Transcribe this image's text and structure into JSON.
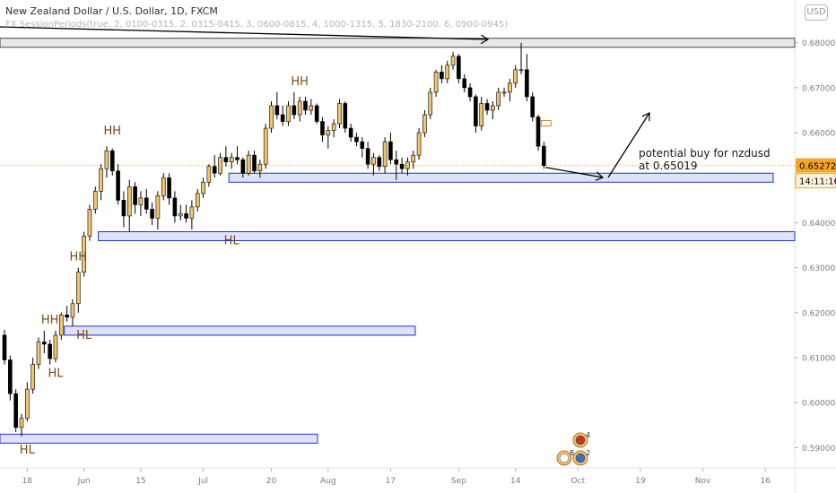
{
  "header": {
    "title": "New Zealand Dollar / U.S. Dollar, 1D, FXCM",
    "indicator": "FX SessionPeriods(true, 2, 0100-0315, 2, 0315-0415, 3, 0600-0815, 4, 1000-1315, 5, 1830-2100, 6, 0900-0945)"
  },
  "currency_badge": "USD",
  "chart_data": {
    "type": "candlestick",
    "symbol": "NZDUSD",
    "interval": "1D",
    "ylim": [
      0.5855,
      0.6895
    ],
    "y_ticks": [
      "0.69000",
      "0.68000",
      "0.67000",
      "0.66000",
      "0.65000",
      "0.64000",
      "0.63000",
      "0.62000",
      "0.61000",
      "0.60000",
      "0.59000"
    ],
    "x_ticks": [
      "18",
      "Jun",
      "15",
      "Jul",
      "20",
      "Aug",
      "17",
      "Sep",
      "14",
      "Oct",
      "19",
      "Nov",
      "16"
    ],
    "current_price": "0.65272",
    "countdown": "14:11:16",
    "candles": [
      {
        "o": 0.615,
        "h": 0.6162,
        "l": 0.6085,
        "c": 0.6095
      },
      {
        "o": 0.6095,
        "h": 0.6105,
        "l": 0.6005,
        "c": 0.602
      },
      {
        "o": 0.602,
        "h": 0.603,
        "l": 0.5935,
        "c": 0.5945
      },
      {
        "o": 0.5945,
        "h": 0.5975,
        "l": 0.5925,
        "c": 0.5965
      },
      {
        "o": 0.5965,
        "h": 0.6045,
        "l": 0.5958,
        "c": 0.603
      },
      {
        "o": 0.603,
        "h": 0.61,
        "l": 0.602,
        "c": 0.6085
      },
      {
        "o": 0.6085,
        "h": 0.6145,
        "l": 0.6075,
        "c": 0.6135
      },
      {
        "o": 0.6135,
        "h": 0.616,
        "l": 0.611,
        "c": 0.613
      },
      {
        "o": 0.613,
        "h": 0.614,
        "l": 0.6085,
        "c": 0.6098
      },
      {
        "o": 0.6098,
        "h": 0.616,
        "l": 0.609,
        "c": 0.615
      },
      {
        "o": 0.615,
        "h": 0.62,
        "l": 0.614,
        "c": 0.6195
      },
      {
        "o": 0.6195,
        "h": 0.6215,
        "l": 0.618,
        "c": 0.619
      },
      {
        "o": 0.619,
        "h": 0.623,
        "l": 0.617,
        "c": 0.622
      },
      {
        "o": 0.622,
        "h": 0.63,
        "l": 0.62,
        "c": 0.629
      },
      {
        "o": 0.629,
        "h": 0.638,
        "l": 0.628,
        "c": 0.637
      },
      {
        "o": 0.637,
        "h": 0.644,
        "l": 0.636,
        "c": 0.643
      },
      {
        "o": 0.643,
        "h": 0.648,
        "l": 0.642,
        "c": 0.647
      },
      {
        "o": 0.647,
        "h": 0.653,
        "l": 0.645,
        "c": 0.652
      },
      {
        "o": 0.652,
        "h": 0.657,
        "l": 0.65,
        "c": 0.656
      },
      {
        "o": 0.656,
        "h": 0.6565,
        "l": 0.6505,
        "c": 0.6515
      },
      {
        "o": 0.6515,
        "h": 0.653,
        "l": 0.644,
        "c": 0.645
      },
      {
        "o": 0.645,
        "h": 0.647,
        "l": 0.639,
        "c": 0.6415
      },
      {
        "o": 0.6415,
        "h": 0.6495,
        "l": 0.638,
        "c": 0.648
      },
      {
        "o": 0.648,
        "h": 0.649,
        "l": 0.642,
        "c": 0.644
      },
      {
        "o": 0.644,
        "h": 0.647,
        "l": 0.6415,
        "c": 0.6455
      },
      {
        "o": 0.6455,
        "h": 0.6475,
        "l": 0.642,
        "c": 0.643
      },
      {
        "o": 0.643,
        "h": 0.6445,
        "l": 0.6395,
        "c": 0.641
      },
      {
        "o": 0.641,
        "h": 0.647,
        "l": 0.6385,
        "c": 0.646
      },
      {
        "o": 0.646,
        "h": 0.651,
        "l": 0.645,
        "c": 0.65
      },
      {
        "o": 0.65,
        "h": 0.651,
        "l": 0.644,
        "c": 0.6455
      },
      {
        "o": 0.6455,
        "h": 0.647,
        "l": 0.64,
        "c": 0.6415
      },
      {
        "o": 0.6415,
        "h": 0.644,
        "l": 0.6405,
        "c": 0.642
      },
      {
        "o": 0.642,
        "h": 0.644,
        "l": 0.64,
        "c": 0.641
      },
      {
        "o": 0.641,
        "h": 0.645,
        "l": 0.6385,
        "c": 0.6435
      },
      {
        "o": 0.6435,
        "h": 0.6475,
        "l": 0.6425,
        "c": 0.6465
      },
      {
        "o": 0.6465,
        "h": 0.65,
        "l": 0.6455,
        "c": 0.649
      },
      {
        "o": 0.649,
        "h": 0.653,
        "l": 0.648,
        "c": 0.6525
      },
      {
        "o": 0.6525,
        "h": 0.655,
        "l": 0.65,
        "c": 0.651
      },
      {
        "o": 0.651,
        "h": 0.6555,
        "l": 0.6505,
        "c": 0.6545
      },
      {
        "o": 0.6545,
        "h": 0.657,
        "l": 0.6525,
        "c": 0.6535
      },
      {
        "o": 0.6535,
        "h": 0.6555,
        "l": 0.652,
        "c": 0.6545
      },
      {
        "o": 0.6545,
        "h": 0.657,
        "l": 0.653,
        "c": 0.654
      },
      {
        "o": 0.654,
        "h": 0.6545,
        "l": 0.65,
        "c": 0.651
      },
      {
        "o": 0.651,
        "h": 0.656,
        "l": 0.6505,
        "c": 0.655
      },
      {
        "o": 0.655,
        "h": 0.656,
        "l": 0.651,
        "c": 0.6515
      },
      {
        "o": 0.6515,
        "h": 0.654,
        "l": 0.65,
        "c": 0.653
      },
      {
        "o": 0.653,
        "h": 0.662,
        "l": 0.652,
        "c": 0.661
      },
      {
        "o": 0.661,
        "h": 0.667,
        "l": 0.66,
        "c": 0.666
      },
      {
        "o": 0.666,
        "h": 0.669,
        "l": 0.663,
        "c": 0.664
      },
      {
        "o": 0.664,
        "h": 0.666,
        "l": 0.6615,
        "c": 0.6625
      },
      {
        "o": 0.6625,
        "h": 0.667,
        "l": 0.6615,
        "c": 0.666
      },
      {
        "o": 0.666,
        "h": 0.669,
        "l": 0.663,
        "c": 0.664
      },
      {
        "o": 0.664,
        "h": 0.668,
        "l": 0.6625,
        "c": 0.667
      },
      {
        "o": 0.667,
        "h": 0.668,
        "l": 0.664,
        "c": 0.665
      },
      {
        "o": 0.665,
        "h": 0.6675,
        "l": 0.664,
        "c": 0.666
      },
      {
        "o": 0.666,
        "h": 0.6665,
        "l": 0.662,
        "c": 0.6625
      },
      {
        "o": 0.6625,
        "h": 0.6635,
        "l": 0.658,
        "c": 0.6595
      },
      {
        "o": 0.6595,
        "h": 0.6615,
        "l": 0.6565,
        "c": 0.6605
      },
      {
        "o": 0.6605,
        "h": 0.663,
        "l": 0.659,
        "c": 0.662
      },
      {
        "o": 0.662,
        "h": 0.6675,
        "l": 0.661,
        "c": 0.6665
      },
      {
        "o": 0.6665,
        "h": 0.667,
        "l": 0.66,
        "c": 0.661
      },
      {
        "o": 0.661,
        "h": 0.662,
        "l": 0.658,
        "c": 0.659
      },
      {
        "o": 0.659,
        "h": 0.66,
        "l": 0.657,
        "c": 0.658
      },
      {
        "o": 0.658,
        "h": 0.659,
        "l": 0.6545,
        "c": 0.6565
      },
      {
        "o": 0.6565,
        "h": 0.658,
        "l": 0.652,
        "c": 0.653
      },
      {
        "o": 0.653,
        "h": 0.6555,
        "l": 0.6505,
        "c": 0.6545
      },
      {
        "o": 0.6545,
        "h": 0.655,
        "l": 0.6515,
        "c": 0.6525
      },
      {
        "o": 0.6525,
        "h": 0.659,
        "l": 0.651,
        "c": 0.658
      },
      {
        "o": 0.658,
        "h": 0.66,
        "l": 0.653,
        "c": 0.654
      },
      {
        "o": 0.654,
        "h": 0.656,
        "l": 0.6495,
        "c": 0.653
      },
      {
        "o": 0.653,
        "h": 0.6545,
        "l": 0.651,
        "c": 0.652
      },
      {
        "o": 0.652,
        "h": 0.6545,
        "l": 0.6505,
        "c": 0.6535
      },
      {
        "o": 0.6535,
        "h": 0.656,
        "l": 0.652,
        "c": 0.655
      },
      {
        "o": 0.655,
        "h": 0.661,
        "l": 0.654,
        "c": 0.66
      },
      {
        "o": 0.66,
        "h": 0.665,
        "l": 0.659,
        "c": 0.664
      },
      {
        "o": 0.664,
        "h": 0.67,
        "l": 0.663,
        "c": 0.669
      },
      {
        "o": 0.669,
        "h": 0.674,
        "l": 0.668,
        "c": 0.6735
      },
      {
        "o": 0.6735,
        "h": 0.675,
        "l": 0.671,
        "c": 0.672
      },
      {
        "o": 0.672,
        "h": 0.676,
        "l": 0.671,
        "c": 0.675
      },
      {
        "o": 0.675,
        "h": 0.678,
        "l": 0.674,
        "c": 0.677
      },
      {
        "o": 0.677,
        "h": 0.6775,
        "l": 0.671,
        "c": 0.672
      },
      {
        "o": 0.672,
        "h": 0.673,
        "l": 0.669,
        "c": 0.67
      },
      {
        "o": 0.67,
        "h": 0.671,
        "l": 0.667,
        "c": 0.668
      },
      {
        "o": 0.668,
        "h": 0.6685,
        "l": 0.66,
        "c": 0.6615
      },
      {
        "o": 0.6615,
        "h": 0.668,
        "l": 0.6605,
        "c": 0.6665
      },
      {
        "o": 0.6665,
        "h": 0.6675,
        "l": 0.664,
        "c": 0.665
      },
      {
        "o": 0.665,
        "h": 0.667,
        "l": 0.663,
        "c": 0.666
      },
      {
        "o": 0.666,
        "h": 0.67,
        "l": 0.665,
        "c": 0.669
      },
      {
        "o": 0.669,
        "h": 0.67,
        "l": 0.668,
        "c": 0.669
      },
      {
        "o": 0.669,
        "h": 0.672,
        "l": 0.667,
        "c": 0.671
      },
      {
        "o": 0.671,
        "h": 0.675,
        "l": 0.67,
        "c": 0.674
      },
      {
        "o": 0.674,
        "h": 0.68,
        "l": 0.673,
        "c": 0.674
      },
      {
        "o": 0.674,
        "h": 0.6775,
        "l": 0.667,
        "c": 0.668
      },
      {
        "o": 0.668,
        "h": 0.669,
        "l": 0.6625,
        "c": 0.6635
      },
      {
        "o": 0.6635,
        "h": 0.664,
        "l": 0.656,
        "c": 0.657
      },
      {
        "o": 0.657,
        "h": 0.658,
        "l": 0.652,
        "c": 0.6527
      }
    ]
  },
  "zones": [
    {
      "name": "zone-resistance",
      "top": 0.681,
      "bottom": 0.679,
      "start": 0,
      "end": "edge",
      "fill": "#e8e8e8",
      "stroke": "#434651"
    },
    {
      "name": "zone-buy",
      "top": 0.651,
      "bottom": 0.649,
      "start": 40,
      "end": "right",
      "fill": "#dfe2fb",
      "stroke": "#2433c8"
    },
    {
      "name": "zone-hl-jul",
      "top": 0.638,
      "bottom": 0.636,
      "start": 17,
      "end": "edge",
      "fill": "#dfe2fb",
      "stroke": "#2433c8"
    },
    {
      "name": "zone-hl-jun",
      "top": 0.617,
      "bottom": 0.615,
      "start": 11,
      "end": "mid",
      "fill": "#dfe2fb",
      "stroke": "#2433c8"
    },
    {
      "name": "zone-low",
      "top": 0.593,
      "bottom": 0.591,
      "start": 0,
      "end": "short",
      "fill": "#dfe2fb",
      "stroke": "#2433c8"
    }
  ],
  "labels": [
    {
      "text": "HH",
      "candle": 19,
      "price": 0.658,
      "dy": -8
    },
    {
      "text": "HH",
      "candle": 52,
      "price": 0.669,
      "dy": -8
    },
    {
      "text": "HL",
      "candle": 40,
      "price": 0.638,
      "dy": 14
    },
    {
      "text": "HH",
      "candle": 13,
      "price": 0.63,
      "dy": -8
    },
    {
      "text": "HH",
      "candle": 8,
      "price": 0.616,
      "dy": -8
    },
    {
      "text": "HL",
      "candle": 14,
      "price": 0.617,
      "dy": 14
    },
    {
      "text": "HL",
      "candle": 9,
      "price": 0.6085,
      "dy": 14
    },
    {
      "text": "HL",
      "candle": 4,
      "price": 0.5915,
      "dy": 14
    }
  ],
  "annotation": {
    "line1": "potential buy for nzdusd",
    "line2": "at 0.65019"
  },
  "colors": {
    "bull": "#f2c46e",
    "bear": "#000000",
    "wick": "#000000",
    "label": "#7a4a12",
    "axis_text": "#787b86",
    "price_tag": "#f5a623",
    "price_line": "#f5a623"
  },
  "events": [
    {
      "icon": "us-flag-event-icon",
      "count": "4"
    },
    {
      "icon": "calendar-event-icon",
      "count": "8"
    },
    {
      "icon": "globe-event-icon",
      "count": "2"
    }
  ]
}
